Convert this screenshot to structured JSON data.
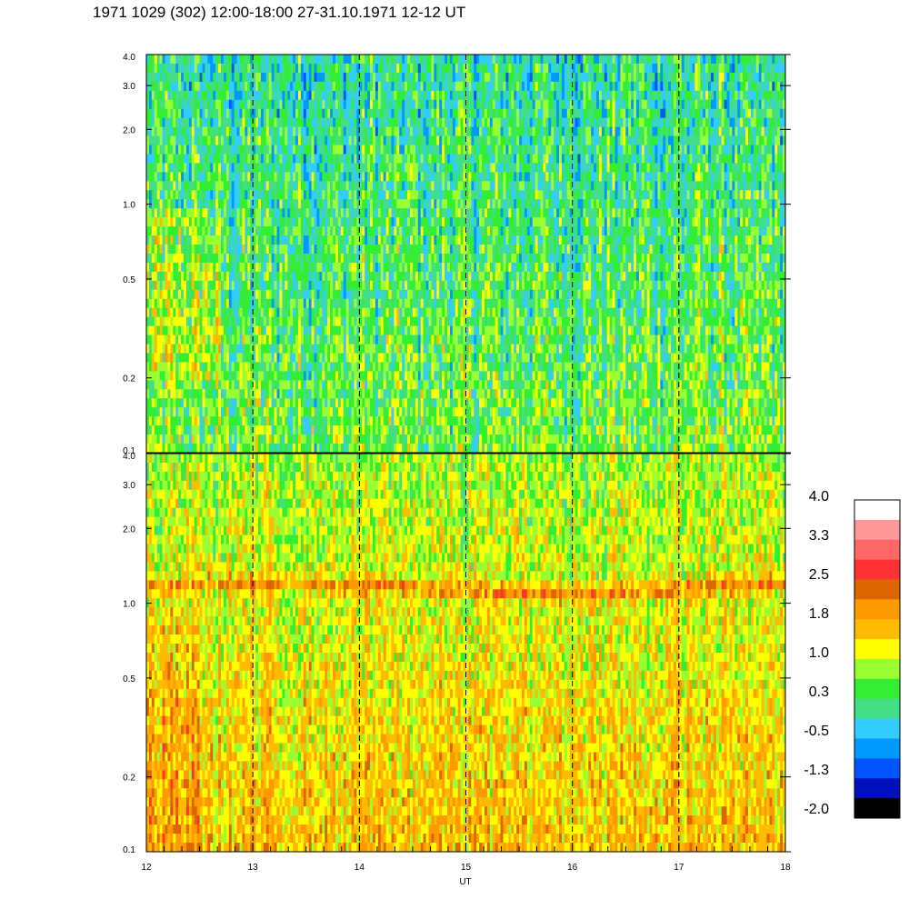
{
  "title": "1971 1029 (302) 12:00-18:00 27-31.10.1971  12-12 UT",
  "chart_data": [
    {
      "type": "heatmap",
      "panel": "upper",
      "xlabel": "",
      "ylabel": "",
      "xlim": [
        12,
        18
      ],
      "ylim": [
        0.1,
        4.0
      ],
      "yscale": "log",
      "y_ticks": [
        "0.1",
        "0.2",
        "0.5",
        "1.0",
        "2.0",
        "3.0",
        "4.0"
      ],
      "y_tick_values": [
        0.1,
        0.2,
        0.5,
        1.0,
        2.0,
        3.0,
        4.0
      ],
      "vertical_dashed_lines": [
        13,
        14,
        15,
        16,
        17
      ],
      "dominant_level": 0.3,
      "description_levels": {
        "low_freq_band_level": 0.6,
        "high_freq_band_level": 0.0
      }
    },
    {
      "type": "heatmap",
      "panel": "lower",
      "xlabel": "UT",
      "ylabel": "",
      "xlim": [
        12,
        18
      ],
      "ylim": [
        0.1,
        4.0
      ],
      "yscale": "log",
      "x_ticks": [
        "12",
        "13",
        "14",
        "15",
        "16",
        "17",
        "18"
      ],
      "x_tick_values": [
        12,
        13,
        14,
        15,
        16,
        17,
        18
      ],
      "y_ticks": [
        "0.1",
        "0.2",
        "0.5",
        "1.0",
        "2.0",
        "3.0",
        "4.0"
      ],
      "y_tick_values": [
        0.1,
        0.2,
        0.5,
        1.0,
        2.0,
        3.0,
        4.0
      ],
      "vertical_dashed_lines": [
        13,
        14,
        15,
        16,
        17
      ],
      "band_center_freq": 1.15,
      "band_level": 2.0,
      "low_freq_level": 1.6,
      "high_freq_level": 0.8
    }
  ],
  "colorbar": {
    "labels": [
      "4.0",
      "3.3",
      "2.5",
      "1.8",
      "1.0",
      "0.3",
      "-0.5",
      "-1.3",
      "-2.0"
    ],
    "colors": [
      "#ffffff",
      "#ff9999",
      "#ff6666",
      "#ff3333",
      "#dd6600",
      "#ff9900",
      "#ffbb00",
      "#ffff00",
      "#99ff33",
      "#33ee33",
      "#44dd88",
      "#33ccff",
      "#0099ff",
      "#0055ff",
      "#0011bb",
      "#000000"
    ],
    "min": -2.0,
    "max": 4.0
  }
}
